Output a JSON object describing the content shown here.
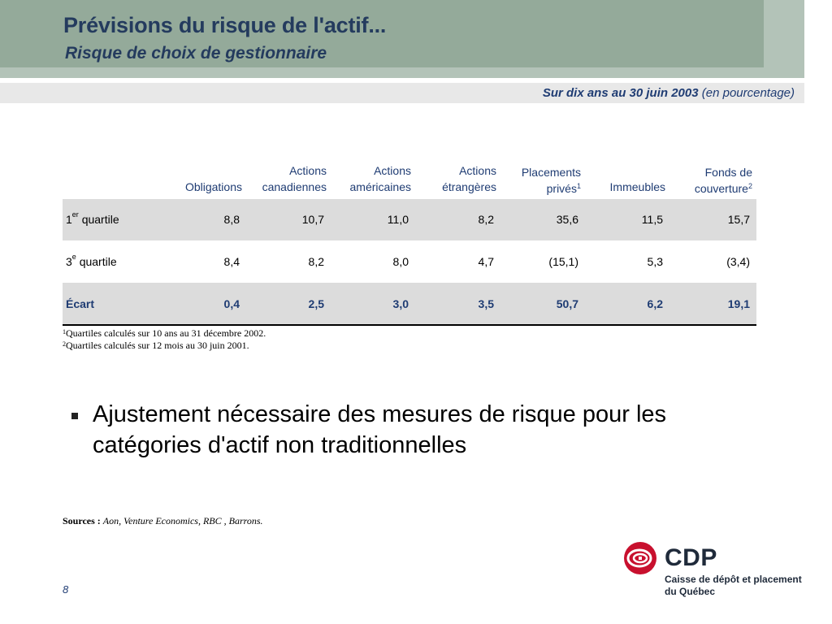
{
  "header": {
    "title": "Prévisions du risque de l'actif...",
    "subtitle": "Risque de choix de gestionnaire"
  },
  "period": {
    "bold": "Sur dix ans au 30 juin 2003",
    "normal": "(en pourcentage)"
  },
  "table": {
    "columns": [
      {
        "line1": "",
        "line2": "Obligations",
        "sup": ""
      },
      {
        "line1": "Actions",
        "line2": "canadiennes",
        "sup": ""
      },
      {
        "line1": "Actions",
        "line2": "américaines",
        "sup": ""
      },
      {
        "line1": "Actions",
        "line2": "étrangères",
        "sup": ""
      },
      {
        "line1": "Placements",
        "line2": "privés",
        "sup": "1"
      },
      {
        "line1": "",
        "line2": "Immeubles",
        "sup": ""
      },
      {
        "line1": "Fonds de",
        "line2": "couverture",
        "sup": "2"
      }
    ],
    "rows": [
      {
        "label_pre": "1",
        "label_sup": "er",
        "label_post": " quartile",
        "values": [
          "8,8",
          "10,7",
          "11,0",
          "8,2",
          "35,6",
          "11,5",
          "15,7"
        ]
      },
      {
        "label_pre": "3",
        "label_sup": "e",
        "label_post": " quartile",
        "values": [
          "8,4",
          "8,2",
          "8,0",
          "4,7",
          "(15,1)",
          "5,3",
          "(3,4)"
        ]
      },
      {
        "label_pre": "Écart",
        "label_sup": "",
        "label_post": "",
        "values": [
          "0,4",
          "2,5",
          "3,0",
          "3,5",
          "50,7",
          "6,2",
          "19,1"
        ]
      }
    ]
  },
  "notes": [
    {
      "num": "1",
      "text": "Quartiles calculés sur 10 ans au 31 décembre 2002."
    },
    {
      "num": "2",
      "text": "Quartiles calculés sur 12 mois au 30 juin 2001."
    }
  ],
  "bullet": "Ajustement nécessaire des mesures de risque pour les catégories d'actif non traditionnelles",
  "sources": {
    "label": "Sources :",
    "text": "Aon, Venture Economics, RBC , Barrons."
  },
  "page_number": "8",
  "logo": {
    "word": "CDP",
    "line1": "Caisse de dépôt et placement",
    "line2": "du Québec",
    "color": "#c8102e"
  }
}
